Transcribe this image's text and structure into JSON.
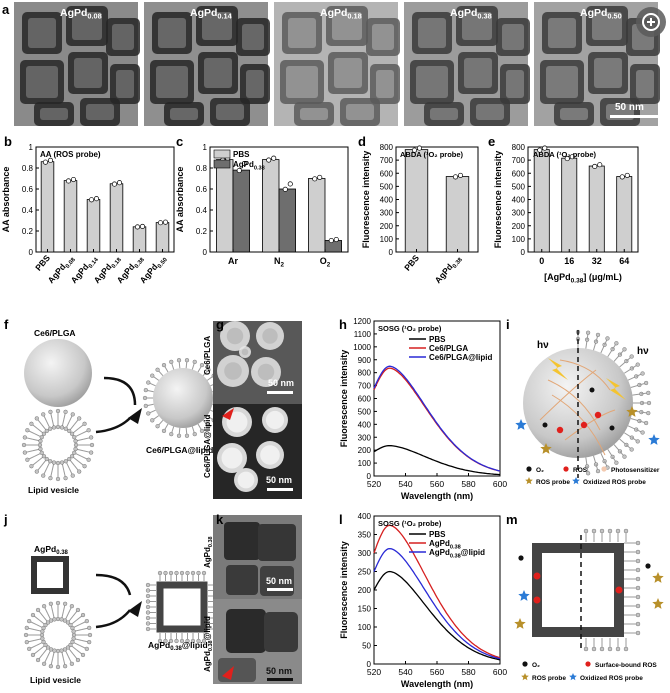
{
  "panel_letters": {
    "a": "a",
    "b": "b",
    "c": "c",
    "d": "d",
    "e": "e",
    "f": "f",
    "g": "g",
    "h": "h",
    "i": "i",
    "j": "j",
    "k": "k",
    "l": "l",
    "m": "m"
  },
  "tem_a": {
    "labels": [
      {
        "base": "AgPd",
        "sub": "0.08"
      },
      {
        "base": "AgPd",
        "sub": "0.14"
      },
      {
        "base": "AgPd",
        "sub": "0.18"
      },
      {
        "base": "AgPd",
        "sub": "0.38"
      },
      {
        "base": "AgPd",
        "sub": "0.50"
      }
    ],
    "scale_bar": "50 nm"
  },
  "zoom_icon": "zoom-in-icon",
  "chart_data": [
    {
      "panel": "b",
      "type": "bar",
      "legend_title": "AA (ROS probe)",
      "ylabel": "AA absorbance",
      "ylim": [
        0,
        1.0
      ],
      "yticks": [
        0,
        0.2,
        0.4,
        0.6,
        0.8,
        1.0
      ],
      "categories": [
        {
          "base": "PBS",
          "sub": ""
        },
        {
          "base": "AgPd",
          "sub": "0.08"
        },
        {
          "base": "AgPd",
          "sub": "0.14"
        },
        {
          "base": "AgPd",
          "sub": "0.18"
        },
        {
          "base": "AgPd",
          "sub": "0.38"
        },
        {
          "base": "AgPd",
          "sub": "0.50"
        }
      ],
      "values": [
        0.86,
        0.68,
        0.5,
        0.65,
        0.24,
        0.28
      ]
    },
    {
      "panel": "c",
      "type": "bar",
      "ylabel": "AA absorbance",
      "ylim": [
        0,
        1.0
      ],
      "yticks": [
        0,
        0.2,
        0.4,
        0.6,
        0.8,
        1.0
      ],
      "categories": [
        {
          "base": "Ar",
          "sub": ""
        },
        {
          "base": "N",
          "sub": "2"
        },
        {
          "base": "O",
          "sub": "2"
        }
      ],
      "series": [
        {
          "name": "PBS",
          "values": [
            0.88,
            0.88,
            0.7
          ],
          "color": "#cfcfcf"
        },
        {
          "name": "AgPd",
          "name_sub": "0.38",
          "values": [
            0.78,
            0.6,
            0.11
          ],
          "color": "#6e6e6e"
        }
      ]
    },
    {
      "panel": "d",
      "type": "bar",
      "legend_title": "ABDA (¹O₂ probe)",
      "ylabel": "Fluorescence intensity",
      "ylim": [
        0,
        800
      ],
      "yticks": [
        0,
        100,
        200,
        300,
        400,
        500,
        600,
        700,
        800
      ],
      "categories": [
        {
          "base": "PBS",
          "sub": ""
        },
        {
          "base": "AgPd",
          "sub": "0.38"
        }
      ],
      "values": [
        780,
        575
      ]
    },
    {
      "panel": "e",
      "type": "bar",
      "legend_title": "ABDA (¹O₂ probe)",
      "ylabel": "Fluorescence intensity",
      "ylim": [
        0,
        800
      ],
      "yticks": [
        0,
        100,
        200,
        300,
        400,
        500,
        600,
        700,
        800
      ],
      "xlabel": "[AgPd0.38] (μg/mL)",
      "categories": [
        {
          "base": "0",
          "sub": ""
        },
        {
          "base": "16",
          "sub": ""
        },
        {
          "base": "32",
          "sub": ""
        },
        {
          "base": "64",
          "sub": ""
        }
      ],
      "values": [
        780,
        715,
        655,
        575
      ]
    },
    {
      "panel": "h",
      "type": "line",
      "legend_title": "SOSG (¹O₂ probe)",
      "xlabel": "Wavelength (nm)",
      "ylabel": "Fluorescence intensity",
      "xlim": [
        520,
        600
      ],
      "ylim": [
        0,
        1200
      ],
      "xticks": [
        520,
        540,
        560,
        580,
        600
      ],
      "yticks": [
        0,
        100,
        200,
        300,
        400,
        500,
        600,
        700,
        800,
        900,
        1000,
        1100,
        1200
      ],
      "series": [
        {
          "name": "PBS",
          "color": "#000000",
          "peak": 235
        },
        {
          "name": "Ce6/PLGA",
          "color": "#d62020",
          "peak": 835
        },
        {
          "name": "Ce6/PLGA@lipid",
          "color": "#2a2ad6",
          "peak": 850
        }
      ]
    },
    {
      "panel": "l",
      "type": "line",
      "legend_title": "SOSG (¹O₂ probe)",
      "xlabel": "Wavelength (nm)",
      "ylabel": "Fluorescence intensity",
      "xlim": [
        520,
        600
      ],
      "ylim": [
        0,
        400
      ],
      "xticks": [
        520,
        540,
        560,
        580,
        600
      ],
      "yticks": [
        0,
        50,
        100,
        150,
        200,
        250,
        300,
        350,
        400
      ],
      "series": [
        {
          "name": "PBS",
          "color": "#000000",
          "peak": 250
        },
        {
          "name": "AgPd0.38",
          "color": "#d62020",
          "peak": 375
        },
        {
          "name": "AgPd0.38@lipid",
          "color": "#2a2ad6",
          "peak": 312
        }
      ]
    }
  ],
  "schematic_f": {
    "top": "Ce6/PLGA",
    "bottom": "Lipid vesicle",
    "result": "Ce6/PLGA@lipid"
  },
  "tem_g": {
    "top": "Ce6/PLGA",
    "bottom": "Ce6/PLGA@lipid",
    "scale_top": "50 nm",
    "scale_bottom": "50 nm"
  },
  "schematic_i": {
    "hv": "hν",
    "legend": [
      "O₂",
      "ROS",
      "Photosensitizer",
      "ROS probe",
      "Oxidized ROS probe"
    ]
  },
  "schematic_j": {
    "top": {
      "base": "AgPd",
      "sub": "0.38"
    },
    "bottom": "Lipid vesicle",
    "result": {
      "base": "AgPd",
      "sub": "0.38",
      "tail": "@lipid"
    }
  },
  "tem_k": {
    "top": {
      "base": "AgPd",
      "sub": "0.38"
    },
    "bottom": {
      "base": "AgPd",
      "sub": "0.38",
      "tail": "@lipid"
    },
    "scale_top": "50 nm",
    "scale_bottom": "50 nm"
  },
  "schematic_m": {
    "legend": [
      "O₂",
      "Surface-bound ROS",
      "ROS probe",
      "Oxidized ROS probe"
    ]
  }
}
